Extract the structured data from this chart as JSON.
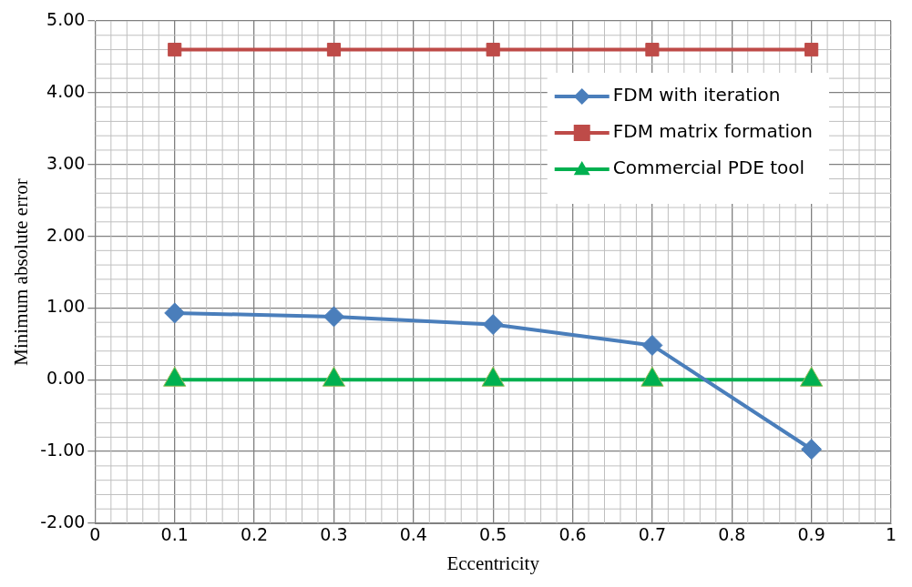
{
  "chart_data": {
    "type": "line",
    "xlabel": "Eccentricity",
    "ylabel": "Minimum absolute error",
    "x": [
      0.1,
      0.3,
      0.5,
      0.7,
      0.9
    ],
    "series": [
      {
        "name": "FDM with iteration",
        "color": "#4a7ebb",
        "marker": "diamond",
        "values": [
          0.93,
          0.88,
          0.77,
          0.48,
          -0.97
        ]
      },
      {
        "name": "FDM matrix formation",
        "color": "#be4b48",
        "marker": "square",
        "values": [
          4.6,
          4.6,
          4.6,
          4.6,
          4.6
        ]
      },
      {
        "name": "Commercial PDE tool",
        "color": "#00b050",
        "marker": "triangle",
        "values": [
          0,
          0,
          0,
          0,
          0
        ]
      }
    ],
    "xlim": [
      0,
      1
    ],
    "xticks": [
      0,
      0.1,
      0.2,
      0.3,
      0.4,
      0.5,
      0.6,
      0.7,
      0.8,
      0.9,
      1
    ],
    "ylim": [
      -2,
      5
    ],
    "yticks": [
      {
        "value": -2,
        "label": "-2.00"
      },
      {
        "value": -1,
        "label": "-1.00"
      },
      {
        "value": 0,
        "label": "0.00"
      },
      {
        "value": 1,
        "label": "1.00"
      },
      {
        "value": 2,
        "label": "2.00"
      },
      {
        "value": 3,
        "label": "3.00"
      },
      {
        "value": 4,
        "label": "4.00"
      },
      {
        "value": 5,
        "label": "5.00"
      }
    ],
    "grid": true,
    "legend": "top right",
    "line_style": "solid"
  }
}
